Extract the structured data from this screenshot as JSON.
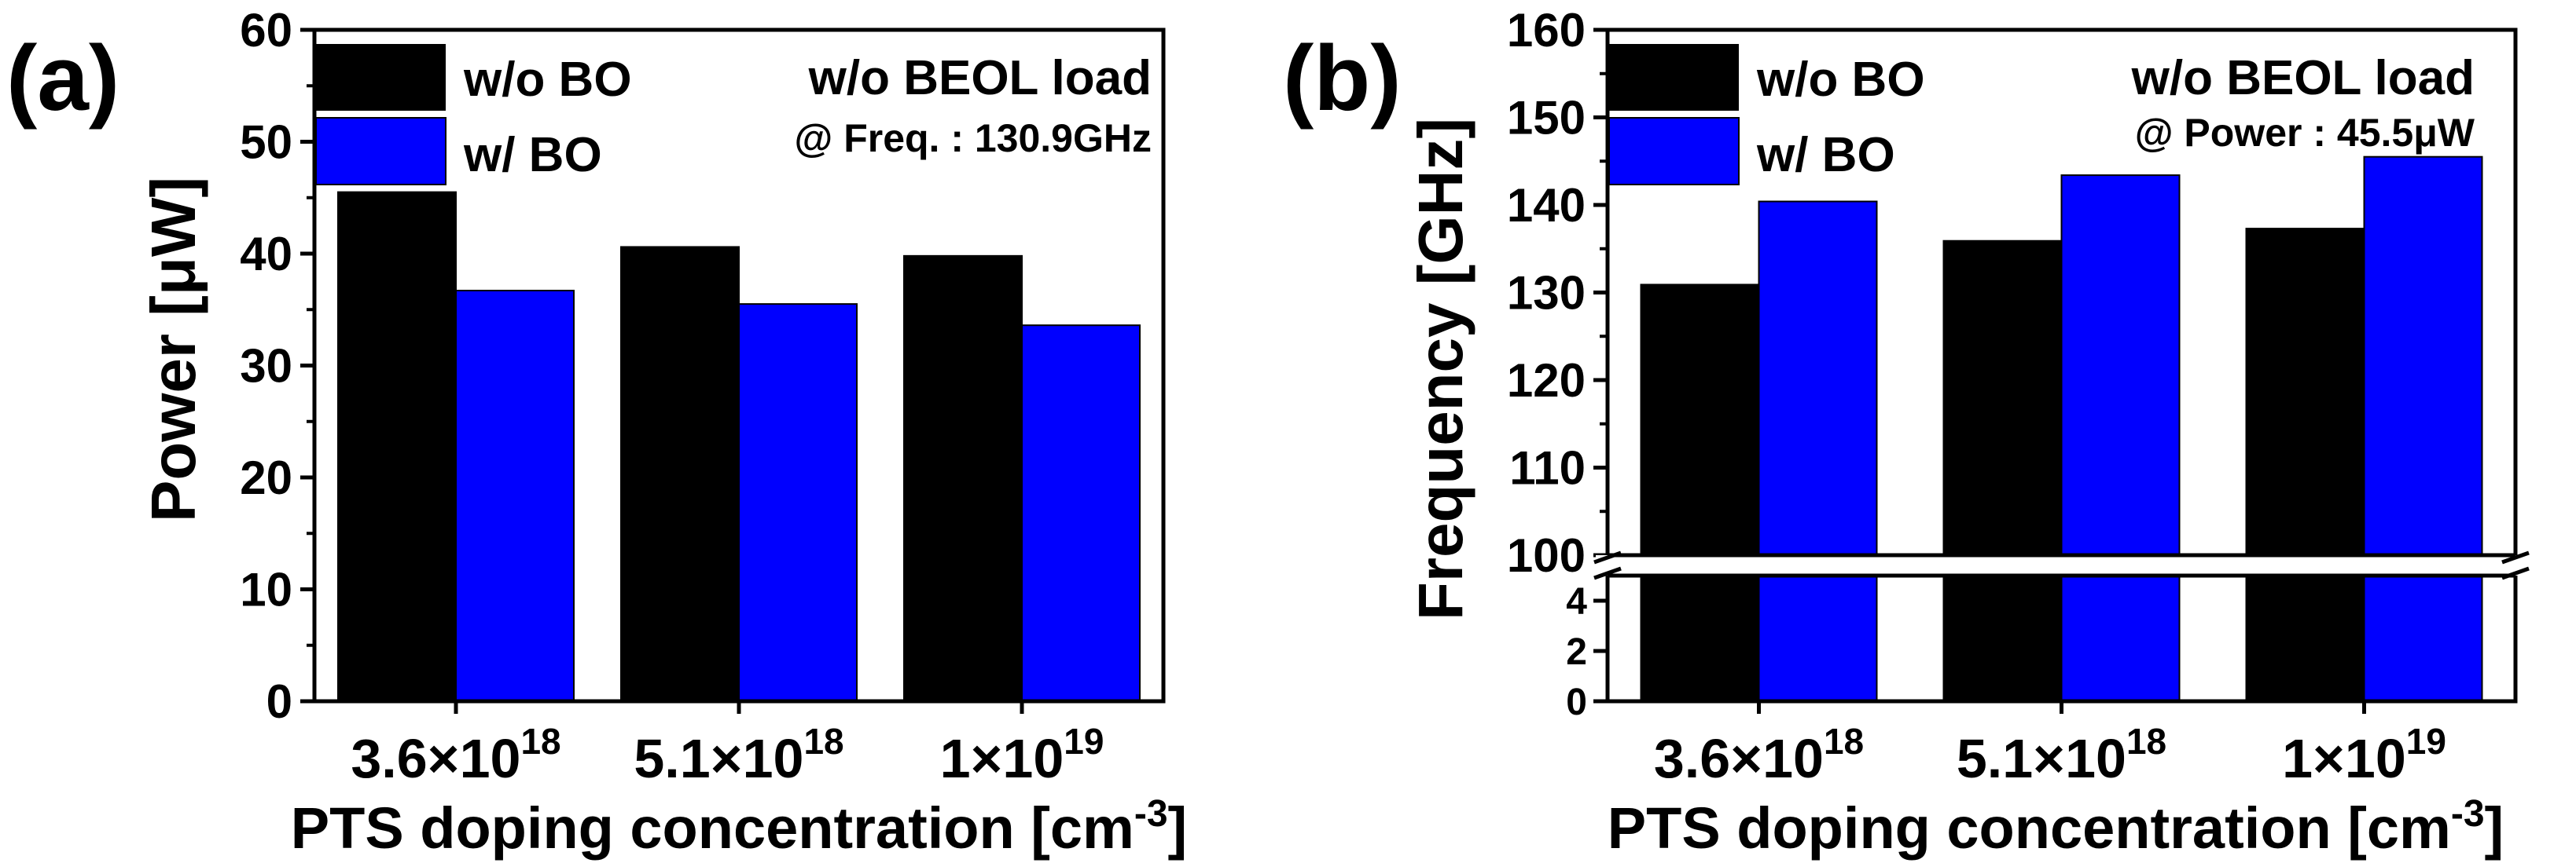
{
  "colors": {
    "without_bo": "#000000",
    "with_bo": "#0000FF",
    "axis": "#000000",
    "background": "#FFFFFF"
  },
  "chart_data": [
    {
      "type": "bar",
      "panel_label": "(a)",
      "categories": [
        "3.6×10",
        "5.1×10",
        "1×10"
      ],
      "category_exponents": [
        "18",
        "18",
        "19"
      ],
      "series": [
        {
          "name": "w/o BO",
          "values": [
            45.5,
            40.6,
            39.8
          ]
        },
        {
          "name": "w/ BO",
          "values": [
            36.7,
            35.5,
            33.6
          ]
        }
      ],
      "xlabel": "PTS doping concentration [cm",
      "xlabel_sup": "-3",
      "xlabel_end": "]",
      "ylabel": "Power [μW]",
      "ylim": [
        0,
        60
      ],
      "yticks": [
        "0",
        "10",
        "20",
        "30",
        "40",
        "50",
        "60"
      ],
      "annotation_1": "w/o BEOL load",
      "annotation_2": "@ Freq. : 130.9GHz",
      "legend_position": "top-left"
    },
    {
      "type": "bar",
      "panel_label": "(b)",
      "categories": [
        "3.6×10",
        "5.1×10",
        "1×10"
      ],
      "category_exponents": [
        "18",
        "18",
        "19"
      ],
      "series": [
        {
          "name": "w/o BO",
          "values": [
            130.9,
            135.9,
            137.3
          ]
        },
        {
          "name": "w/ BO",
          "values": [
            140.4,
            143.4,
            145.5
          ]
        }
      ],
      "xlabel": "PTS doping concentration [cm",
      "xlabel_sup": "-3",
      "xlabel_end": "]",
      "ylabel": "Frequency [GHz]",
      "ylim_lower": [
        0,
        5
      ],
      "ylim_upper": [
        100,
        160
      ],
      "axis_break": "between 5 and 100",
      "yticks_lower": [
        "0",
        "2",
        "4"
      ],
      "yticks_upper": [
        "100",
        "110",
        "120",
        "130",
        "140",
        "150",
        "160"
      ],
      "annotation_1": "w/o BEOL load",
      "annotation_2": "@ Power : 45.5μW",
      "legend_position": "top-left"
    }
  ]
}
